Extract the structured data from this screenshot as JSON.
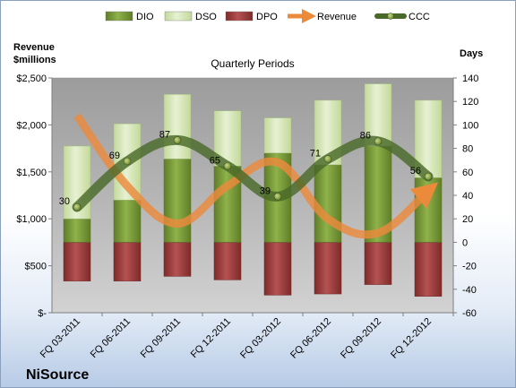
{
  "chart_data": {
    "type": "bar",
    "title": "",
    "subtitle": "Quarterly Periods",
    "company": "NiSource",
    "left_axis_label": [
      "Revenue",
      "$millions"
    ],
    "right_axis_label": "Days",
    "categories": [
      "FQ 03-2011",
      "FQ 06-2011",
      "FQ 09-2011",
      "FQ 12-2011",
      "FQ 03-2012",
      "FQ 06-2012",
      "FQ 09-2012",
      "FQ 12-2012"
    ],
    "left_axis": {
      "min": 0,
      "max": 2500,
      "step": 500,
      "tick_labels": [
        "$-",
        "$500",
        "$1,000",
        "$1,500",
        "$2,000",
        "$2,500"
      ]
    },
    "right_axis": {
      "min": -60,
      "max": 140,
      "step": 20,
      "tick_labels": [
        "-60",
        "-40",
        "-20",
        "0",
        "20",
        "40",
        "60",
        "80",
        "100",
        "120",
        "140"
      ]
    },
    "series": [
      {
        "name": "DIO",
        "axis": "right",
        "kind": "stacked-bar",
        "values": [
          20,
          36,
          71,
          65,
          76,
          66,
          82,
          55
        ]
      },
      {
        "name": "DSO",
        "axis": "right",
        "kind": "stacked-bar",
        "values": [
          62,
          65,
          55,
          47,
          30,
          55,
          53,
          66
        ]
      },
      {
        "name": "DPO",
        "axis": "right",
        "kind": "negative-bar",
        "values": [
          -33,
          -33,
          -29,
          -32,
          -45,
          -44,
          -36,
          -46
        ]
      },
      {
        "name": "Revenue",
        "axis": "left",
        "kind": "line",
        "values": [
          2100,
          1350,
          950,
          1350,
          1600,
          1000,
          850,
          1300
        ]
      },
      {
        "name": "CCC",
        "axis": "right",
        "kind": "line",
        "values": [
          30,
          69,
          87,
          65,
          39,
          71,
          86,
          56
        ]
      }
    ],
    "ccc_labels": [
      "30",
      "69",
      "87",
      "65",
      "39",
      "71",
      "86",
      "56"
    ],
    "legend": {
      "position": "top",
      "items": [
        "DIO",
        "DSO",
        "DPO",
        "Revenue",
        "CCC"
      ]
    },
    "grid": false,
    "colors": {
      "DIO": "#7a9c38",
      "DSO": "#d6e6b3",
      "DPO": "#a23e3e",
      "Revenue": "#ec8a3c",
      "CCC": "#4a6a2a",
      "plot_background": "#ababab"
    }
  }
}
